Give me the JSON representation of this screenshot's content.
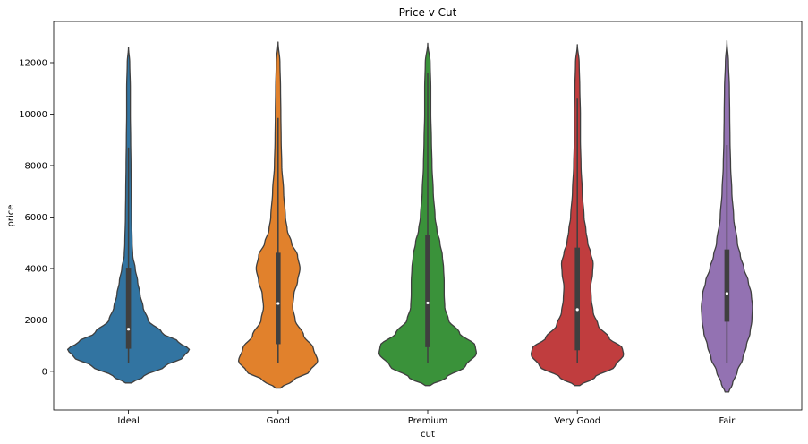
{
  "chart_data": {
    "type": "violin",
    "title": "Price v Cut",
    "xlabel": "cut",
    "ylabel": "price",
    "ylim": [
      -1500,
      13600
    ],
    "yticks": [
      0,
      2000,
      4000,
      6000,
      8000,
      10000,
      12000
    ],
    "ytick_labels": [
      "0",
      "2000",
      "4000",
      "6000",
      "8000",
      "10000",
      "12000"
    ],
    "grid": false,
    "categories": [
      "Ideal",
      "Good",
      "Premium",
      "Very Good",
      "Fair"
    ],
    "colors": [
      "#3274a1",
      "#e1812c",
      "#3a923a",
      "#c03d3e",
      "#9372b2"
    ],
    "violins": [
      {
        "name": "Ideal",
        "min": -450,
        "max": 12600,
        "q1": 880,
        "median": 1640,
        "q3": 4030,
        "whisker_low": 330,
        "whisker_high": 8700,
        "profile": [
          [
            -450,
            0.05
          ],
          [
            -200,
            0.25
          ],
          [
            200,
            0.6
          ],
          [
            550,
            0.9
          ],
          [
            850,
            1.0
          ],
          [
            1150,
            0.82
          ],
          [
            1500,
            0.55
          ],
          [
            2000,
            0.32
          ],
          [
            2500,
            0.24
          ],
          [
            3000,
            0.19
          ],
          [
            3500,
            0.15
          ],
          [
            4000,
            0.11
          ],
          [
            4500,
            0.07
          ],
          [
            5000,
            0.06
          ],
          [
            6000,
            0.05
          ],
          [
            7000,
            0.045
          ],
          [
            8000,
            0.04
          ],
          [
            9000,
            0.035
          ],
          [
            10000,
            0.03
          ],
          [
            11000,
            0.03
          ],
          [
            12000,
            0.02
          ],
          [
            12600,
            0.0
          ]
        ]
      },
      {
        "name": "Good",
        "min": -650,
        "max": 12800,
        "q1": 1060,
        "median": 2640,
        "q3": 4610,
        "whisker_low": 330,
        "whisker_high": 9850,
        "profile": [
          [
            -650,
            0.04
          ],
          [
            -350,
            0.25
          ],
          [
            0,
            0.52
          ],
          [
            400,
            0.65
          ],
          [
            900,
            0.58
          ],
          [
            1400,
            0.42
          ],
          [
            2000,
            0.28
          ],
          [
            2500,
            0.24
          ],
          [
            3000,
            0.26
          ],
          [
            3500,
            0.32
          ],
          [
            4000,
            0.36
          ],
          [
            4500,
            0.32
          ],
          [
            5000,
            0.22
          ],
          [
            5500,
            0.15
          ],
          [
            6000,
            0.12
          ],
          [
            7000,
            0.09
          ],
          [
            8000,
            0.06
          ],
          [
            9000,
            0.05
          ],
          [
            10000,
            0.045
          ],
          [
            11000,
            0.04
          ],
          [
            12000,
            0.03
          ],
          [
            12800,
            0.0
          ]
        ]
      },
      {
        "name": "Premium",
        "min": -550,
        "max": 12750,
        "q1": 940,
        "median": 2660,
        "q3": 5310,
        "whisker_low": 330,
        "whisker_high": 11600,
        "profile": [
          [
            -550,
            0.04
          ],
          [
            -250,
            0.3
          ],
          [
            200,
            0.62
          ],
          [
            700,
            0.8
          ],
          [
            1000,
            0.78
          ],
          [
            1500,
            0.52
          ],
          [
            2000,
            0.34
          ],
          [
            2500,
            0.28
          ],
          [
            3000,
            0.27
          ],
          [
            3500,
            0.27
          ],
          [
            4000,
            0.26
          ],
          [
            4500,
            0.24
          ],
          [
            5000,
            0.2
          ],
          [
            5500,
            0.15
          ],
          [
            6000,
            0.12
          ],
          [
            7000,
            0.09
          ],
          [
            8000,
            0.07
          ],
          [
            9000,
            0.06
          ],
          [
            10000,
            0.05
          ],
          [
            11000,
            0.05
          ],
          [
            12000,
            0.04
          ],
          [
            12750,
            0.0
          ]
        ]
      },
      {
        "name": "Very Good",
        "min": -550,
        "max": 12700,
        "q1": 820,
        "median": 2400,
        "q3": 4810,
        "whisker_low": 330,
        "whisker_high": 10600,
        "profile": [
          [
            -550,
            0.04
          ],
          [
            -250,
            0.28
          ],
          [
            200,
            0.62
          ],
          [
            650,
            0.76
          ],
          [
            900,
            0.74
          ],
          [
            1300,
            0.52
          ],
          [
            1800,
            0.34
          ],
          [
            2300,
            0.26
          ],
          [
            2800,
            0.23
          ],
          [
            3300,
            0.22
          ],
          [
            3800,
            0.25
          ],
          [
            4200,
            0.26
          ],
          [
            4600,
            0.22
          ],
          [
            5000,
            0.17
          ],
          [
            5500,
            0.14
          ],
          [
            6000,
            0.11
          ],
          [
            7000,
            0.08
          ],
          [
            8000,
            0.06
          ],
          [
            9000,
            0.05
          ],
          [
            10000,
            0.05
          ],
          [
            11000,
            0.04
          ],
          [
            12000,
            0.03
          ],
          [
            12700,
            0.0
          ]
        ]
      },
      {
        "name": "Fair",
        "min": -800,
        "max": 12850,
        "q1": 1930,
        "median": 3030,
        "q3": 4740,
        "whisker_low": 330,
        "whisker_high": 8800,
        "profile": [
          [
            -800,
            0.03
          ],
          [
            -500,
            0.09
          ],
          [
            0,
            0.17
          ],
          [
            500,
            0.26
          ],
          [
            1000,
            0.32
          ],
          [
            1500,
            0.38
          ],
          [
            2000,
            0.41
          ],
          [
            2500,
            0.42
          ],
          [
            3000,
            0.4
          ],
          [
            3500,
            0.35
          ],
          [
            4000,
            0.28
          ],
          [
            4500,
            0.22
          ],
          [
            5000,
            0.17
          ],
          [
            6000,
            0.11
          ],
          [
            7000,
            0.08
          ],
          [
            8000,
            0.06
          ],
          [
            9000,
            0.05
          ],
          [
            10000,
            0.045
          ],
          [
            11000,
            0.04
          ],
          [
            12000,
            0.025
          ],
          [
            12850,
            0.0
          ]
        ]
      }
    ]
  }
}
